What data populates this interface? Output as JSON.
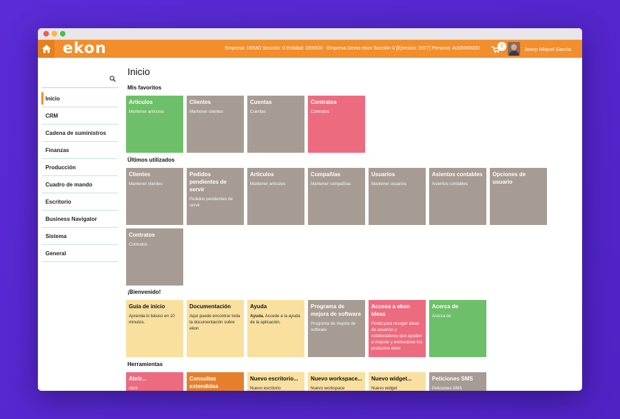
{
  "app": {
    "logo": "ekon",
    "context": "Empresa: DEMO Sección: 0 Entidad: DEMO0 - Empresa Demo ekon Sección 0 [Ejercicio: 2017] Persona: A000000000",
    "cart_count": "0",
    "user_name": "Josep Miquel Garcia"
  },
  "sidebar": {
    "items": [
      {
        "label": "Inicio"
      },
      {
        "label": "CRM"
      },
      {
        "label": "Cadena de suministros"
      },
      {
        "label": "Finanzas"
      },
      {
        "label": "Producción"
      },
      {
        "label": "Cuadro de mando"
      },
      {
        "label": "Escritorio"
      },
      {
        "label": "Business Navigator"
      },
      {
        "label": "Sistema"
      },
      {
        "label": "General"
      }
    ]
  },
  "main": {
    "title": "Inicio",
    "favorites": {
      "title": "Mis favoritos",
      "tiles": [
        {
          "title": "Artículos",
          "sub": "Mantener artículos"
        },
        {
          "title": "Clientes",
          "sub": "Mantener clientes"
        },
        {
          "title": "Cuentas",
          "sub": "Cuentas"
        },
        {
          "title": "Contratos",
          "sub": "Contratos"
        }
      ]
    },
    "recent": {
      "title": "Últimos utilizados",
      "tiles": [
        {
          "title": "Clientes",
          "sub": "Mantener clientes"
        },
        {
          "title": "Pedidos pendientes de servir",
          "sub": "Pedidos pendientes de servir"
        },
        {
          "title": "Artículos",
          "sub": "Mantener artículos"
        },
        {
          "title": "Compañías",
          "sub": "Mantener compañías"
        },
        {
          "title": "Usuarios",
          "sub": "Mantener usuarios"
        },
        {
          "title": "Asientos contables",
          "sub": "Asientos contables"
        },
        {
          "title": "Opciones de usuario",
          "sub": ""
        },
        {
          "title": "Contratos",
          "sub": "Contratos"
        }
      ]
    },
    "welcome": {
      "title": "¡Bienvenido!",
      "tiles": [
        {
          "title": "Guía de inicio",
          "sub": "Aprenda lo básico en 10 minutos."
        },
        {
          "title": "Documentación",
          "sub": "Aquí puede encontrar toda la documentación sobre ekon"
        },
        {
          "title": "Ayuda",
          "sub_bold": "Ayuda.",
          "sub": " Accede a la ayuda de la aplicación."
        },
        {
          "title": "Programa de mejora de software",
          "sub": "Programa de mejora de software"
        },
        {
          "title": "Acceso a ekon ideas",
          "sub": "Portal para recoger ideas de usuarios y colaboradores que ayuden a mejorar y evolucionar los productos ekon"
        },
        {
          "title": "Acerca de",
          "sub": "Acerca de"
        }
      ]
    },
    "tools": {
      "title": "Herramientas",
      "tiles": [
        {
          "title": "Abrir...",
          "sub": "Abrir"
        },
        {
          "title": "Consultas extendidas",
          "sub": ""
        },
        {
          "title": "Nuevo escritorio...",
          "sub": "Nuevo escritorio"
        },
        {
          "title": "Nuevo workspace...",
          "sub": "Nuevo workspace"
        },
        {
          "title": "Nuevo widget...",
          "sub": "Nuevo widget"
        },
        {
          "title": "Peticiones SMS",
          "sub": "Peticiones SMS"
        }
      ]
    }
  },
  "colors": {
    "topbar": "#f28e2b",
    "tile_gray": "#a69c93",
    "tile_green": "#6ebf69",
    "tile_pink": "#ec6b7f",
    "tile_orange": "#e67f2b",
    "tile_yellow": "#f9e09f"
  }
}
